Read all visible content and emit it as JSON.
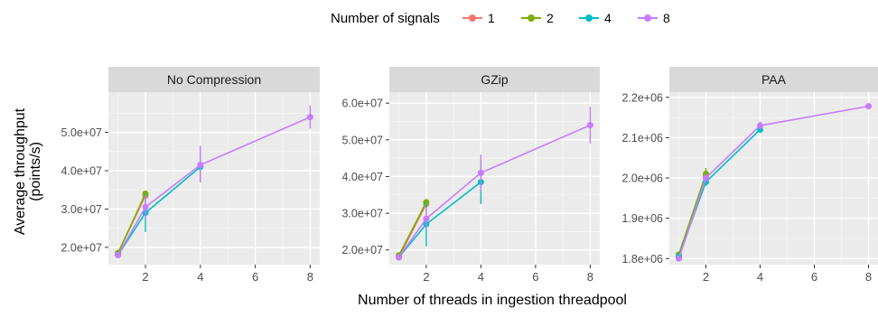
{
  "legend": {
    "title": "Number of signals",
    "position": "top",
    "items": [
      {
        "label": "1",
        "color": "#F8766D"
      },
      {
        "label": "2",
        "color": "#7CAE00"
      },
      {
        "label": "4",
        "color": "#00BFC4"
      },
      {
        "label": "8",
        "color": "#C77CFF"
      }
    ]
  },
  "axes": {
    "xlabel": "Number of threads in ingestion threadpool",
    "ylabel_line1": "Average throughput",
    "ylabel_line2": "(points/s)"
  },
  "chart_data": [
    {
      "type": "line",
      "panel": "No Compression",
      "x_ticks": [
        2,
        4,
        6,
        8
      ],
      "xlim": [
        0.65,
        8.35
      ],
      "y_ticks": [
        {
          "value": 20000000,
          "label": "2.0e+07"
        },
        {
          "value": 30000000,
          "label": "3.0e+07"
        },
        {
          "value": 40000000,
          "label": "4.0e+07"
        },
        {
          "value": 50000000,
          "label": "5.0e+07"
        }
      ],
      "ylim": [
        15500000,
        60500000
      ],
      "grid": true,
      "series": [
        {
          "name": "1",
          "points": [
            {
              "x": 1,
              "y": 18500000,
              "lo": 18000000,
              "hi": 19000000
            },
            {
              "x": 2,
              "y": 33500000,
              "lo": 33000000,
              "hi": 34000000
            }
          ]
        },
        {
          "name": "2",
          "points": [
            {
              "x": 1,
              "y": 18500000,
              "lo": 18000000,
              "hi": 19000000
            },
            {
              "x": 2,
              "y": 34000000,
              "lo": 33500000,
              "hi": 34500000
            }
          ]
        },
        {
          "name": "4",
          "points": [
            {
              "x": 1,
              "y": 18000000,
              "lo": 17500000,
              "hi": 18500000
            },
            {
              "x": 2,
              "y": 29000000,
              "lo": 24000000,
              "hi": 34000000
            },
            {
              "x": 4,
              "y": 41000000,
              "lo": 37000000,
              "hi": 45000000
            }
          ]
        },
        {
          "name": "8",
          "points": [
            {
              "x": 1,
              "y": 18000000,
              "lo": 17500000,
              "hi": 18500000
            },
            {
              "x": 2,
              "y": 30500000,
              "lo": 27500000,
              "hi": 33500000
            },
            {
              "x": 4,
              "y": 41500000,
              "lo": 37000000,
              "hi": 46500000
            },
            {
              "x": 8,
              "y": 54000000,
              "lo": 51000000,
              "hi": 57000000
            }
          ]
        }
      ]
    },
    {
      "type": "line",
      "panel": "GZip",
      "x_ticks": [
        2,
        4,
        6,
        8
      ],
      "xlim": [
        0.65,
        8.35
      ],
      "y_ticks": [
        {
          "value": 20000000,
          "label": "2.0e+07"
        },
        {
          "value": 30000000,
          "label": "3.0e+07"
        },
        {
          "value": 40000000,
          "label": "4.0e+07"
        },
        {
          "value": 50000000,
          "label": "5.0e+07"
        },
        {
          "value": 60000000,
          "label": "6.0e+07"
        }
      ],
      "ylim": [
        16000000,
        63000000
      ],
      "grid": true,
      "series": [
        {
          "name": "1",
          "points": [
            {
              "x": 1,
              "y": 18000000,
              "lo": 17500000,
              "hi": 18500000
            },
            {
              "x": 2,
              "y": 32500000,
              "lo": 32000000,
              "hi": 33000000
            }
          ]
        },
        {
          "name": "2",
          "points": [
            {
              "x": 1,
              "y": 18500000,
              "lo": 18000000,
              "hi": 19000000
            },
            {
              "x": 2,
              "y": 33000000,
              "lo": 32500000,
              "hi": 33500000
            }
          ]
        },
        {
          "name": "4",
          "points": [
            {
              "x": 1,
              "y": 18000000,
              "lo": 17500000,
              "hi": 18500000
            },
            {
              "x": 2,
              "y": 27000000,
              "lo": 21000000,
              "hi": 33000000
            },
            {
              "x": 4,
              "y": 38500000,
              "lo": 32500000,
              "hi": 44500000
            }
          ]
        },
        {
          "name": "8",
          "points": [
            {
              "x": 1,
              "y": 18000000,
              "lo": 17500000,
              "hi": 18500000
            },
            {
              "x": 2,
              "y": 28500000,
              "lo": 25500000,
              "hi": 31500000
            },
            {
              "x": 4,
              "y": 41000000,
              "lo": 36000000,
              "hi": 46000000
            },
            {
              "x": 8,
              "y": 54000000,
              "lo": 49000000,
              "hi": 59000000
            }
          ]
        }
      ]
    },
    {
      "type": "line",
      "panel": "PAA",
      "x_ticks": [
        2,
        4,
        6,
        8
      ],
      "xlim": [
        0.65,
        8.35
      ],
      "y_ticks": [
        {
          "value": 1800000,
          "label": "1.8e+06"
        },
        {
          "value": 1900000,
          "label": "1.9e+06"
        },
        {
          "value": 2000000,
          "label": "2.0e+06"
        },
        {
          "value": 2100000,
          "label": "2.1e+06"
        },
        {
          "value": 2200000,
          "label": "2.2e+06"
        }
      ],
      "ylim": [
        1785000,
        2213000
      ],
      "grid": true,
      "series": [
        {
          "name": "1",
          "points": [
            {
              "x": 1,
              "y": 1805000,
              "lo": 1800000,
              "hi": 1810000
            },
            {
              "x": 2,
              "y": 2005000,
              "lo": 1995000,
              "hi": 2015000
            }
          ]
        },
        {
          "name": "2",
          "points": [
            {
              "x": 1,
              "y": 1810000,
              "lo": 1805000,
              "hi": 1815000
            },
            {
              "x": 2,
              "y": 2010000,
              "lo": 1995000,
              "hi": 2025000
            }
          ]
        },
        {
          "name": "4",
          "points": [
            {
              "x": 1,
              "y": 1805000,
              "lo": 1800000,
              "hi": 1810000
            },
            {
              "x": 2,
              "y": 1990000,
              "lo": 1980000,
              "hi": 2000000
            },
            {
              "x": 4,
              "y": 2120000,
              "lo": 2112000,
              "hi": 2128000
            }
          ]
        },
        {
          "name": "8",
          "points": [
            {
              "x": 1,
              "y": 1800000,
              "lo": 1795000,
              "hi": 1805000
            },
            {
              "x": 2,
              "y": 2000000,
              "lo": 1990000,
              "hi": 2010000
            },
            {
              "x": 4,
              "y": 2130000,
              "lo": 2120000,
              "hi": 2140000
            },
            {
              "x": 8,
              "y": 2178000,
              "lo": 2172000,
              "hi": 2184000
            }
          ]
        }
      ]
    }
  ]
}
